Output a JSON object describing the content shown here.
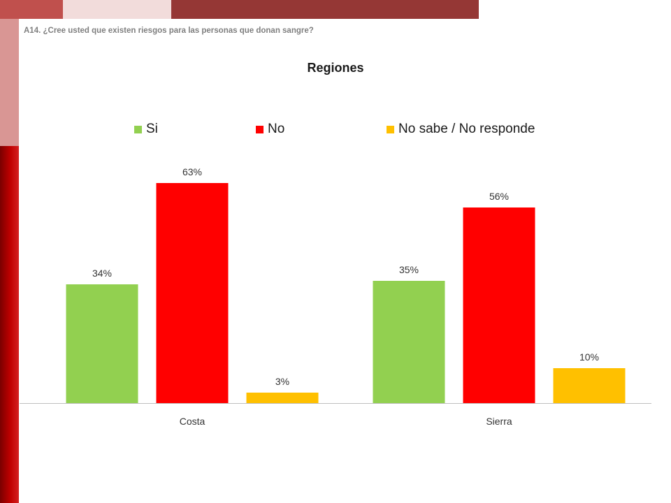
{
  "question": "A14. ¿Cree usted que existen riesgos para las personas que donan sangre?",
  "colors": {
    "si": "#92d050",
    "no": "#ff0000",
    "nsnr": "#ffc000"
  },
  "chart_data": {
    "type": "bar",
    "title": "Regiones",
    "categories": [
      "Costa",
      "Sierra"
    ],
    "series": [
      {
        "name": "Si",
        "values": [
          34,
          35
        ],
        "labels": [
          "34%",
          "35%"
        ]
      },
      {
        "name": "No",
        "values": [
          63,
          56
        ],
        "labels": [
          "63%",
          "56%"
        ]
      },
      {
        "name": "No sabe / No responde",
        "values": [
          3,
          10
        ],
        "labels": [
          "3%",
          "10%"
        ]
      }
    ],
    "ylim": [
      0,
      75
    ],
    "legend_position": "top",
    "grid": false
  }
}
